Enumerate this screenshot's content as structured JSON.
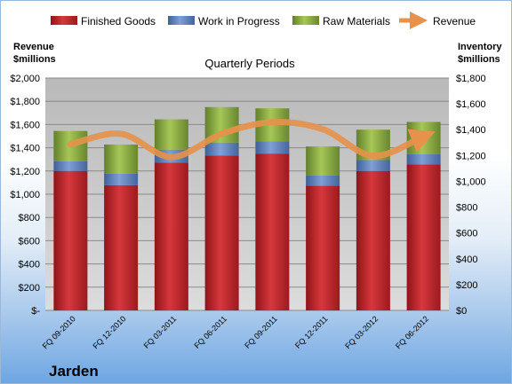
{
  "chart_data": {
    "type": "bar",
    "title": "",
    "subtitle": "Quarterly Periods",
    "company": "Jarden",
    "left_axis": {
      "label_line1": "Revenue",
      "label_line2": "$millions",
      "ylim": [
        0,
        2000
      ],
      "ticks": [
        "$-",
        "$200",
        "$400",
        "$600",
        "$800",
        "$1,000",
        "$1,200",
        "$1,400",
        "$1,600",
        "$1,800",
        "$2,000"
      ]
    },
    "right_axis": {
      "label_line1": "Inventory",
      "label_line2": "$millions",
      "ylim": [
        0,
        1800
      ],
      "ticks": [
        "$0",
        "$200",
        "$400",
        "$600",
        "$800",
        "$1,000",
        "$1,200",
        "$1,400",
        "$1,600",
        "$1,800"
      ]
    },
    "categories": [
      "FQ 09-2010",
      "FQ 12-2010",
      "FQ 03-2011",
      "FQ 06-2011",
      "FQ 09-2011",
      "FQ 12-2011",
      "FQ 03-2012",
      "FQ 06-2012"
    ],
    "series": [
      {
        "name": "Finished Goods",
        "axis": "right",
        "color": "#c0252a",
        "values": [
          1080,
          970,
          1145,
          1200,
          1215,
          965,
          1080,
          1130
        ]
      },
      {
        "name": "Work in Progress",
        "axis": "right",
        "color": "#5b7fbf",
        "values": [
          75,
          90,
          100,
          100,
          95,
          80,
          85,
          80
        ]
      },
      {
        "name": "Raw Materials",
        "axis": "right",
        "color": "#8fb03e",
        "values": [
          235,
          225,
          235,
          275,
          255,
          225,
          235,
          250
        ]
      },
      {
        "name": "Revenue",
        "axis": "left",
        "type": "line",
        "color": "#e8914a",
        "values": [
          1430,
          1520,
          1320,
          1520,
          1620,
          1560,
          1330,
          1500
        ]
      }
    ],
    "grid": true,
    "legend_position": "top"
  }
}
